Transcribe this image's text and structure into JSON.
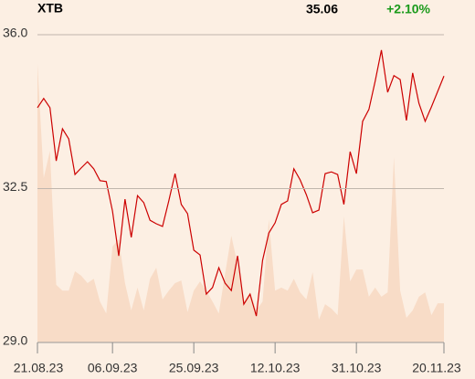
{
  "header": {
    "symbol": "XTB",
    "price": "35.06",
    "change": "+2.10%"
  },
  "chart_data": {
    "type": "line",
    "categories": [
      "21.08.23",
      null,
      null,
      null,
      null,
      null,
      null,
      null,
      null,
      null,
      null,
      null,
      "06.09.23",
      null,
      null,
      null,
      null,
      null,
      null,
      null,
      null,
      null,
      null,
      null,
      null,
      "25.09.23",
      null,
      null,
      null,
      null,
      null,
      null,
      null,
      null,
      null,
      null,
      null,
      null,
      "12.10.23",
      null,
      null,
      null,
      null,
      null,
      null,
      null,
      null,
      null,
      null,
      null,
      null,
      "31.10.23",
      null,
      null,
      null,
      null,
      null,
      null,
      null,
      null,
      null,
      null,
      null,
      null,
      null,
      "20.11.23"
    ],
    "series": [
      {
        "type": "area",
        "color": "#f8dcc7",
        "values": [
          35.34,
          32.74,
          33.36,
          30.31,
          30.18,
          30.18,
          30.62,
          30.52,
          30.35,
          30.45,
          29.93,
          29.66,
          31.18,
          31.35,
          30.35,
          29.73,
          30.25,
          29.73,
          30.45,
          30.7,
          29.98,
          30.18,
          30.35,
          30.41,
          29.69,
          30.18,
          30.39,
          30.18,
          29.93,
          29.66,
          30.56,
          31.43,
          30.77,
          29.93,
          30.14,
          29.73,
          29.93,
          31.8,
          30.18,
          30.25,
          30.18,
          30.45,
          30.14,
          29.98,
          30.6,
          29.52,
          29.87,
          29.77,
          29.62,
          31.87,
          30.39,
          30.66,
          30.66,
          30.04,
          30.25,
          30.04,
          30.14,
          33.22,
          30.18,
          29.56,
          29.73,
          30.04,
          30.14,
          29.62,
          29.89,
          29.89
        ]
      },
      {
        "type": "line",
        "color": "#cc0000",
        "values": [
          34.34,
          34.55,
          34.34,
          33.13,
          33.86,
          33.63,
          32.82,
          32.97,
          33.11,
          32.95,
          32.68,
          32.66,
          31.99,
          30.97,
          32.26,
          31.39,
          32.34,
          32.18,
          31.78,
          31.7,
          31.64,
          32.22,
          32.84,
          32.14,
          31.93,
          31.1,
          30.99,
          30.1,
          30.25,
          30.7,
          30.35,
          30.18,
          30.97,
          29.87,
          30.1,
          29.6,
          30.87,
          31.49,
          31.72,
          32.14,
          32.22,
          32.95,
          32.7,
          32.36,
          31.95,
          32.01,
          32.84,
          32.88,
          32.82,
          32.14,
          33.34,
          32.84,
          34.03,
          34.3,
          34.94,
          35.65,
          34.69,
          35.07,
          34.98,
          34.05,
          35.13,
          34.44,
          34.03,
          34.36,
          34.71,
          35.06
        ]
      }
    ],
    "ylim": [
      29,
      36
    ],
    "yticks": [
      {
        "value": 36,
        "label": "36.0"
      },
      32.5,
      {
        "value": 29,
        "label": "29.0"
      }
    ],
    "grid": true
  }
}
